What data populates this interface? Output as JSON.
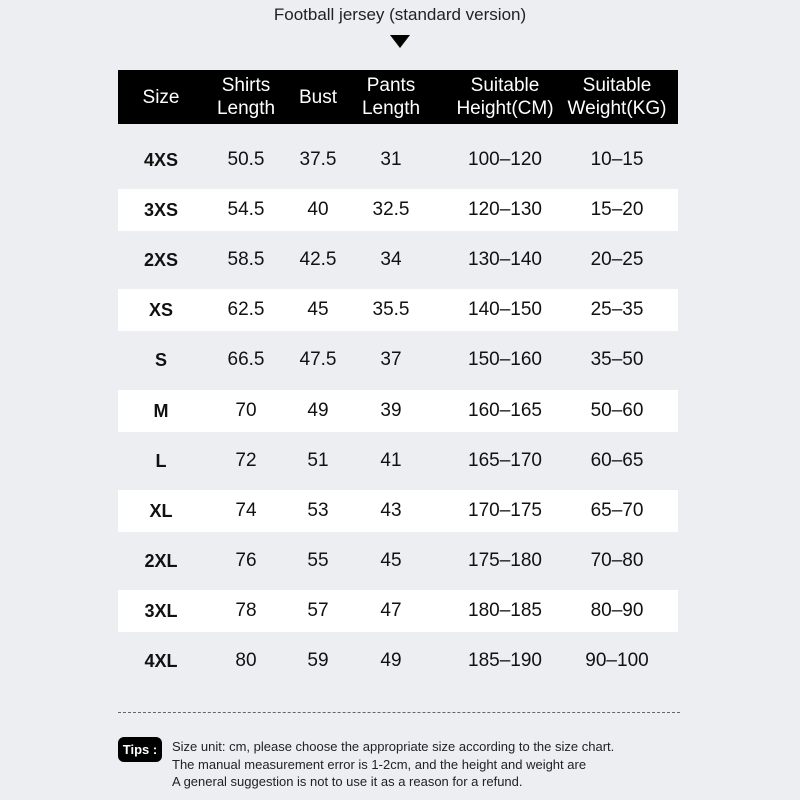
{
  "title": "Football jersey (standard version)",
  "table": {
    "header": [
      [
        "Size"
      ],
      [
        "Shirts",
        "Length"
      ],
      [
        "Bust"
      ],
      [
        "Pants",
        "Length"
      ],
      [
        "Suitable",
        "Height(CM)"
      ],
      [
        "Suitable",
        "Weight(KG)"
      ]
    ],
    "rows": [
      [
        "4XS",
        "50.5",
        "37.5",
        "31",
        "100–120",
        "10–15"
      ],
      [
        "3XS",
        "54.5",
        "40",
        "32.5",
        "120–130",
        "15–20"
      ],
      [
        "2XS",
        "58.5",
        "42.5",
        "34",
        "130–140",
        "20–25"
      ],
      [
        "XS",
        "62.5",
        "45",
        "35.5",
        "140–150",
        "25–35"
      ],
      [
        "S",
        "66.5",
        "47.5",
        "37",
        "150–160",
        "35–50"
      ],
      [
        "M",
        "70",
        "49",
        "39",
        "160–165",
        "50–60"
      ],
      [
        "L",
        "72",
        "51",
        "41",
        "165–170",
        "60–65"
      ],
      [
        "XL",
        "74",
        "53",
        "43",
        "170–175",
        "65–70"
      ],
      [
        "2XL",
        "76",
        "55",
        "45",
        "175–180",
        "70–80"
      ],
      [
        "3XL",
        "78",
        "57",
        "47",
        "180–185",
        "80–90"
      ],
      [
        "4XL",
        "80",
        "59",
        "49",
        "185–190",
        "90–100"
      ]
    ]
  },
  "tips": {
    "label": "Tips :",
    "lines": [
      "Size unit: cm, please choose the appropriate size according to the size chart.",
      "The manual measurement error is 1-2cm, and the height and weight are",
      "A general suggestion is not to use it as a reason for a refund."
    ]
  }
}
